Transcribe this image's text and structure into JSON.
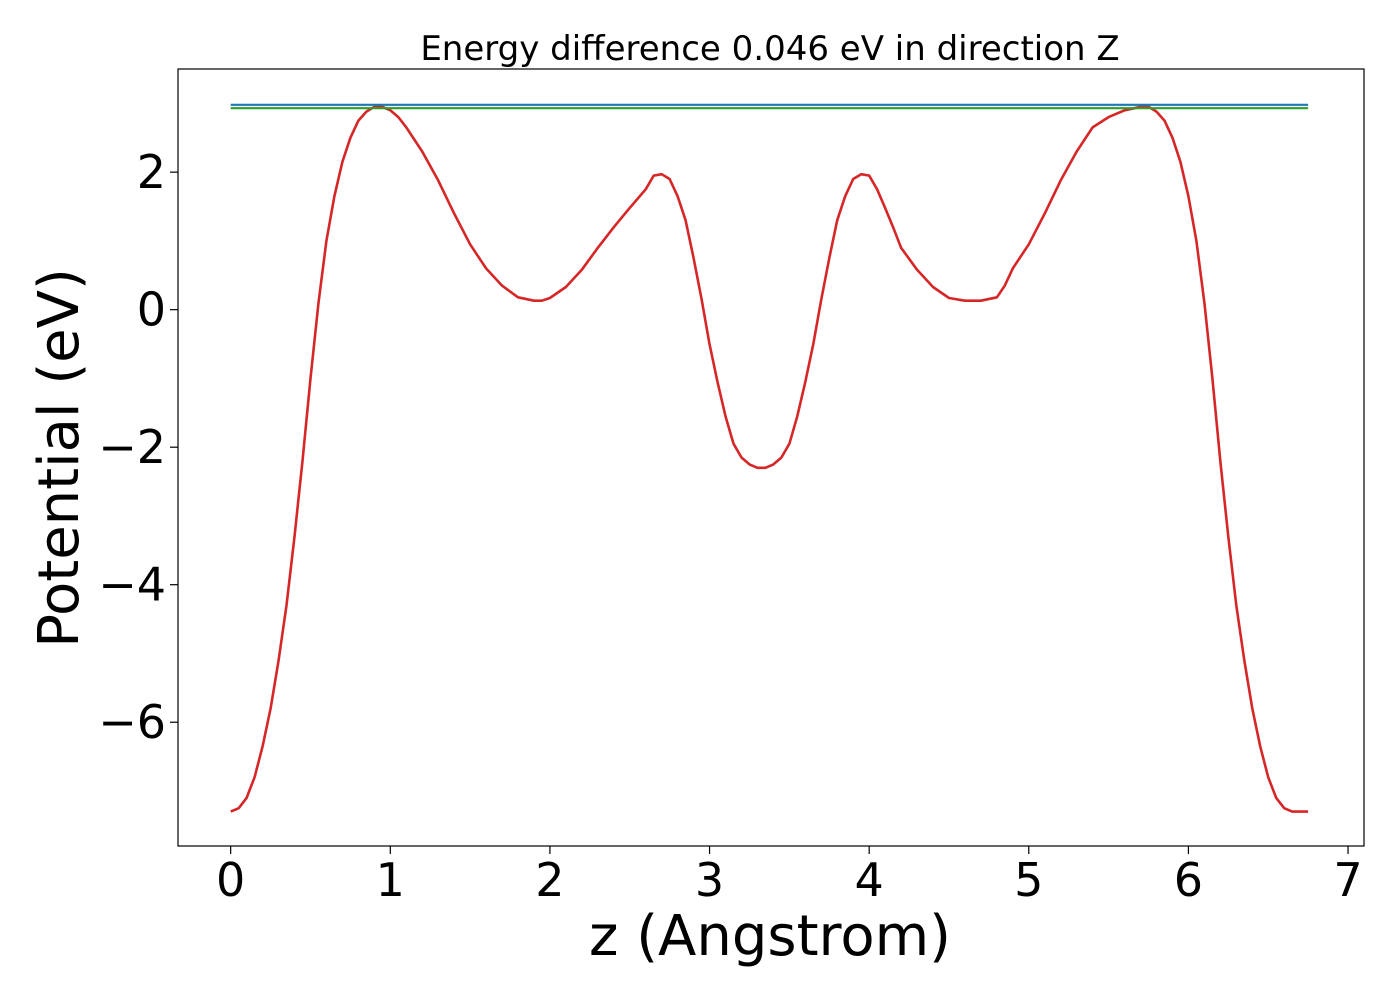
{
  "chart_data": {
    "type": "line",
    "title": "Energy difference 0.046 eV in direction Z",
    "xlabel": "z (Angstrom)",
    "ylabel": "Potential (eV)",
    "xlim": [
      -0.33,
      7.1
    ],
    "ylim": [
      -7.8,
      3.5
    ],
    "xticks": [
      0,
      1,
      2,
      3,
      4,
      5,
      6,
      7
    ],
    "yticks": [
      -6,
      -4,
      -2,
      0,
      2
    ],
    "grid": false,
    "legend": "none",
    "series": [
      {
        "color": "#d62728",
        "x": [
          0.0,
          0.05,
          0.1,
          0.15,
          0.2,
          0.25,
          0.3,
          0.35,
          0.4,
          0.45,
          0.5,
          0.55,
          0.6,
          0.65,
          0.7,
          0.75,
          0.8,
          0.85,
          0.9,
          0.95,
          1.0,
          1.05,
          1.1,
          1.2,
          1.3,
          1.4,
          1.5,
          1.6,
          1.7,
          1.8,
          1.9,
          1.95,
          2.0,
          2.1,
          2.2,
          2.3,
          2.4,
          2.5,
          2.6,
          2.65,
          2.7,
          2.75,
          2.8,
          2.85,
          2.9,
          2.95,
          3.0,
          3.05,
          3.1,
          3.15,
          3.2,
          3.25,
          3.3,
          3.35,
          3.4,
          3.45,
          3.5,
          3.55,
          3.6,
          3.65,
          3.7,
          3.75,
          3.8,
          3.85,
          3.9,
          3.95,
          4.0,
          4.05,
          4.1,
          4.15,
          4.2,
          4.3,
          4.4,
          4.5,
          4.6,
          4.7,
          4.8,
          4.85,
          4.9,
          5.0,
          5.1,
          5.2,
          5.3,
          5.4,
          5.5,
          5.6,
          5.7,
          5.75,
          5.8,
          5.85,
          5.9,
          5.95,
          6.0,
          6.05,
          6.1,
          6.15,
          6.2,
          6.25,
          6.3,
          6.35,
          6.4,
          6.45,
          6.5,
          6.55,
          6.6,
          6.65,
          6.7,
          6.75
        ],
        "y": [
          -7.3,
          -7.25,
          -7.1,
          -6.8,
          -6.35,
          -5.8,
          -5.1,
          -4.3,
          -3.3,
          -2.2,
          -1.0,
          0.1,
          1.0,
          1.65,
          2.15,
          2.5,
          2.75,
          2.88,
          2.95,
          2.95,
          2.9,
          2.8,
          2.65,
          2.3,
          1.88,
          1.4,
          0.95,
          0.6,
          0.35,
          0.18,
          0.13,
          0.13,
          0.17,
          0.33,
          0.58,
          0.9,
          1.2,
          1.48,
          1.75,
          1.95,
          1.97,
          1.9,
          1.65,
          1.3,
          0.75,
          0.15,
          -0.5,
          -1.05,
          -1.55,
          -1.95,
          -2.15,
          -2.25,
          -2.3,
          -2.3,
          -2.25,
          -2.15,
          -1.95,
          -1.55,
          -1.05,
          -0.5,
          0.15,
          0.75,
          1.3,
          1.65,
          1.9,
          1.97,
          1.95,
          1.75,
          1.48,
          1.2,
          0.9,
          0.58,
          0.33,
          0.17,
          0.13,
          0.13,
          0.18,
          0.35,
          0.6,
          0.95,
          1.4,
          1.88,
          2.3,
          2.65,
          2.8,
          2.9,
          2.95,
          2.95,
          2.88,
          2.75,
          2.5,
          2.15,
          1.65,
          1.0,
          0.1,
          -1.0,
          -2.2,
          -3.3,
          -4.3,
          -5.1,
          -5.8,
          -6.35,
          -6.8,
          -7.1,
          -7.25,
          -7.3,
          -7.3,
          -7.3
        ]
      },
      {
        "color": "#1f77b4",
        "x": [
          0.0,
          6.75
        ],
        "y": [
          2.98,
          2.98
        ]
      },
      {
        "color": "#2ca02c",
        "x": [
          0.0,
          6.75
        ],
        "y": [
          2.93,
          2.93
        ]
      }
    ]
  }
}
